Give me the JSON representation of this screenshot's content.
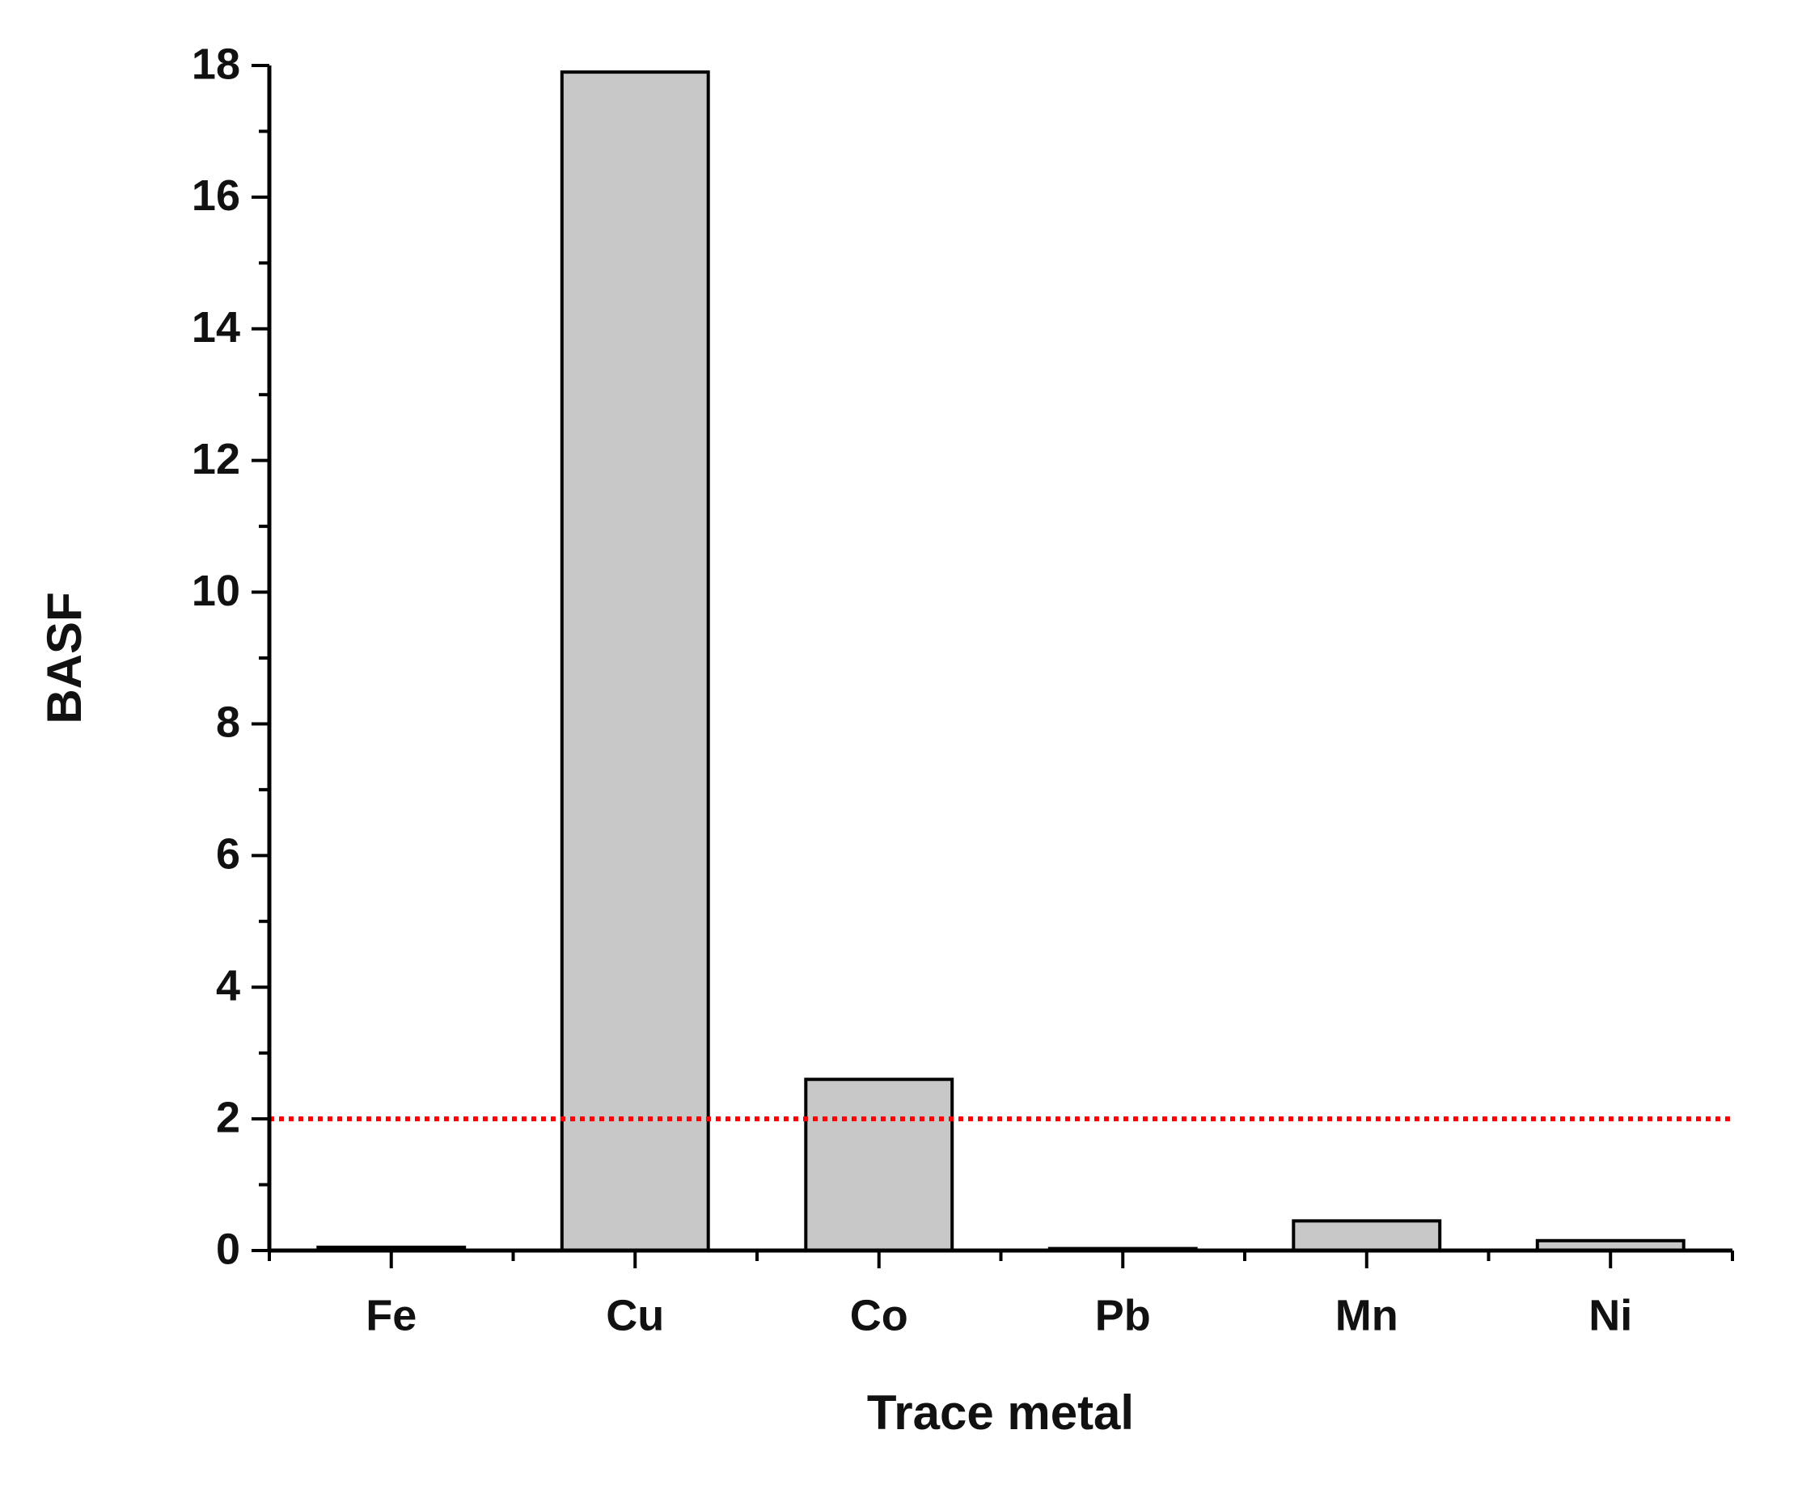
{
  "chart_data": {
    "type": "bar",
    "x_label": "Trace metal",
    "y_label": "BASF",
    "categories": [
      "Fe",
      "Cu",
      "Co",
      "Pb",
      "Mn",
      "Ni"
    ],
    "values": [
      0.05,
      17.9,
      2.6,
      0.03,
      0.45,
      0.15
    ],
    "color": "#c8c8c8",
    "ylim": [
      0,
      18
    ],
    "yticks": [
      0,
      2,
      4,
      6,
      8,
      10,
      12,
      14,
      16,
      18
    ],
    "yminorticks": [
      1,
      3,
      5,
      7,
      9,
      11,
      13,
      15,
      17
    ],
    "reference_line": {
      "value": 2,
      "color": "#ff0000"
    },
    "grid": false
  }
}
